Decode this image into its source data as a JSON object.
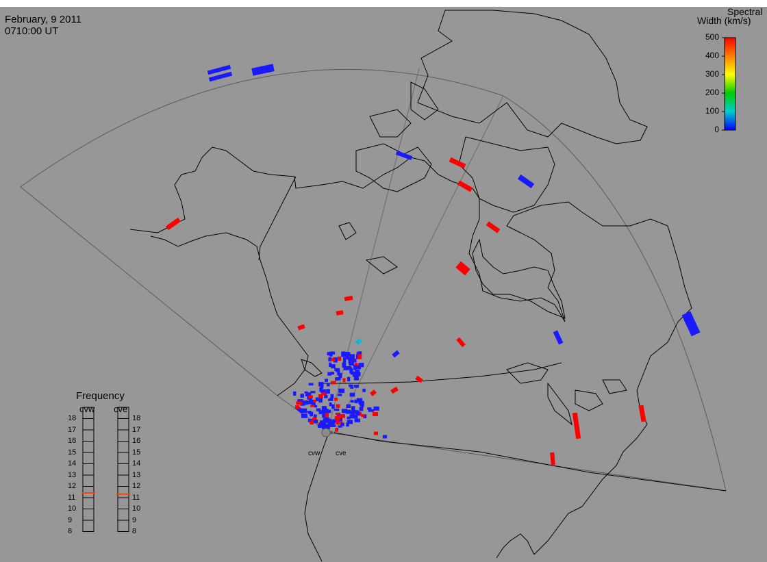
{
  "header": {
    "date": "February, 9 2011",
    "time": "0710:00 UT"
  },
  "colorbar": {
    "title_line1": "Spectral",
    "title_line2": "Width (km/s)",
    "ticks": [
      "500",
      "400",
      "300",
      "200",
      "100",
      "0"
    ],
    "colors": [
      "#ff0000",
      "#ff8000",
      "#ffff00",
      "#00cc00",
      "#00cccc",
      "#0000ff"
    ]
  },
  "frequency": {
    "title": "Frequency",
    "radar_west": "cvw",
    "radar_east": "cve",
    "levels": [
      "18",
      "17",
      "16",
      "15",
      "14",
      "13",
      "12",
      "11",
      "10",
      "9",
      "8"
    ],
    "cvw_value": 10.9,
    "cve_value": 10.8
  },
  "radars": {
    "west_label": "cvw",
    "east_label": "cve"
  },
  "colors": {
    "background": "#979797",
    "coastline": "#000000",
    "fov": "#5a5a5a",
    "marker": "#ff4000"
  }
}
